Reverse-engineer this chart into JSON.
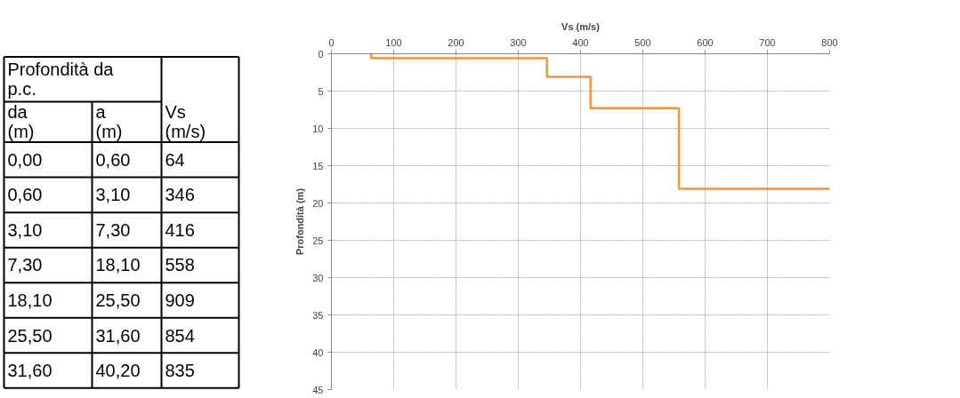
{
  "chart_data": [
    {
      "type": "other",
      "annotations": [
        "Profondità da p.c.",
        "da (m)",
        "a (m)",
        "Vs (m/s)",
        "0,00",
        "0,60",
        "64",
        "0,60",
        "3,10",
        "346",
        "3,10",
        "7,30",
        "416",
        "7,30",
        "18,10",
        "558",
        "18,10",
        "25,50",
        "909",
        "25,50",
        "31,60",
        "854",
        "31,60",
        "40,20",
        "835"
      ]
    },
    {
      "type": "line",
      "xlabel": "Vs (m/s)",
      "ylabel": "Profondità (m)",
      "xlim": [
        0,
        800
      ],
      "xticks": [
        0,
        100,
        200,
        300,
        400,
        500,
        600,
        700,
        800
      ],
      "ylim": [
        45,
        0
      ],
      "yticks": [
        0,
        5,
        10,
        15,
        20,
        25,
        30,
        35,
        40,
        45
      ],
      "grid": true,
      "series": [
        {
          "color": "#f7943d",
          "x": [
            64,
            64,
            346,
            346,
            416,
            416,
            558,
            558,
            800
          ],
          "values": [
            0,
            0.6,
            0.6,
            3.1,
            3.1,
            7.3,
            7.3,
            18.1,
            18.1
          ]
        }
      ]
    }
  ]
}
